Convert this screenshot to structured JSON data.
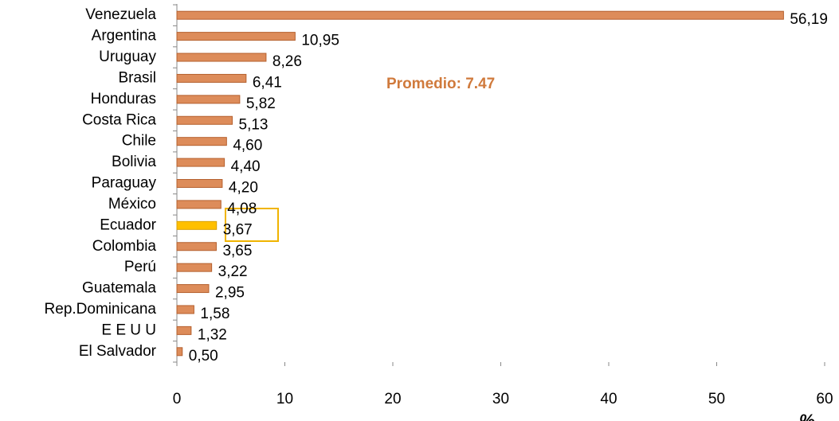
{
  "chart_data": {
    "type": "bar",
    "orientation": "horizontal",
    "categories": [
      "Venezuela",
      "Argentina",
      "Uruguay",
      "Brasil",
      "Honduras",
      "Costa Rica",
      "Chile",
      "Bolivia",
      "Paraguay",
      "México",
      "Ecuador",
      "Colombia",
      "Perú",
      "Guatemala",
      "Rep.Dominicana",
      "E E U U",
      "El Salvador"
    ],
    "values": [
      56.19,
      10.95,
      8.26,
      6.41,
      5.82,
      5.13,
      4.6,
      4.4,
      4.2,
      4.08,
      3.67,
      3.65,
      3.22,
      2.95,
      1.58,
      1.32,
      0.5
    ],
    "value_labels": [
      "56,19",
      "10,95",
      "8,26",
      "6,41",
      "5,82",
      "5,13",
      "4,60",
      "4,40",
      "4,20",
      "4,08",
      "3,67",
      "3,65",
      "3,22",
      "2,95",
      "1,58",
      "1,32",
      "0,50"
    ],
    "colors": [
      "#dd8c5a",
      "#dd8c5a",
      "#dd8c5a",
      "#dd8c5a",
      "#dd8c5a",
      "#dd8c5a",
      "#dd8c5a",
      "#dd8c5a",
      "#dd8c5a",
      "#dd8c5a",
      "#ffc000",
      "#dd8c5a",
      "#dd8c5a",
      "#dd8c5a",
      "#dd8c5a",
      "#dd8c5a",
      "#dd8c5a"
    ],
    "xlim": [
      0,
      60
    ],
    "xticks": [
      0,
      10,
      20,
      30,
      40,
      50,
      60
    ],
    "annotation": "Promedio: 7.47",
    "x_label": "%"
  }
}
